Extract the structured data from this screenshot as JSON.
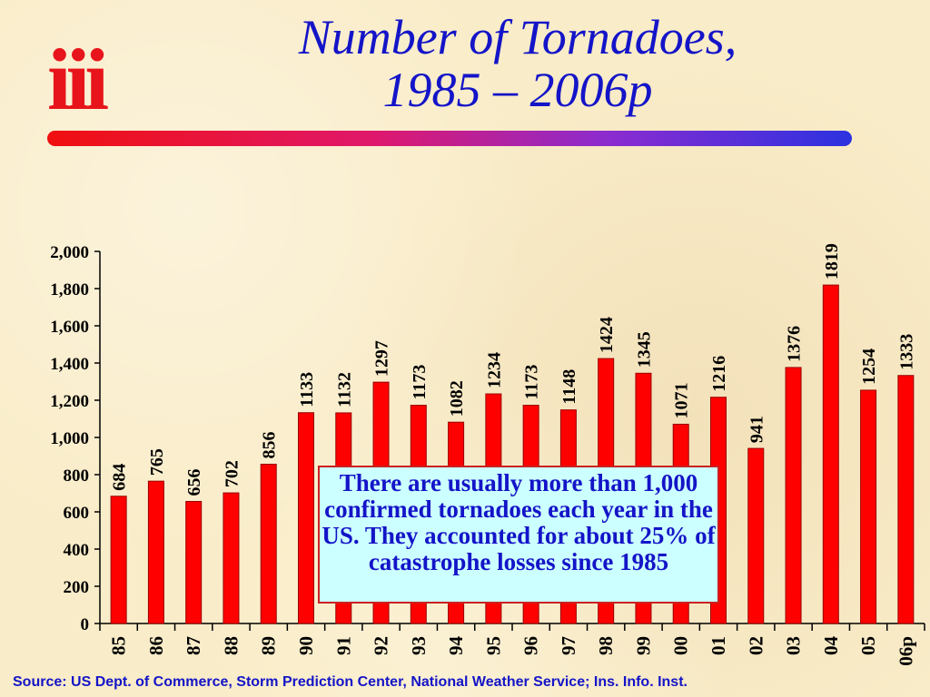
{
  "logo": {
    "text": "iii"
  },
  "header": {
    "title_line1": "Number of Tornadoes,",
    "title_line2": "1985 – 2006p"
  },
  "callout": {
    "text": "There are usually more than 1,000 confirmed tornadoes each year in the US.  They accounted for about 25% of catastrophe losses since 1985"
  },
  "source": "Source: US Dept. of Commerce, Storm Prediction Center, National Weather Service; Ins. Info. Inst.",
  "colors": {
    "bar": "#ff0000",
    "bar_stroke": "#990000",
    "title": "#1414c8",
    "text": "#000000"
  },
  "chart_data": {
    "type": "bar",
    "title": "Number of Tornadoes, 1985 – 2006p",
    "categories": [
      "85",
      "86",
      "87",
      "88",
      "89",
      "90",
      "91",
      "92",
      "93",
      "94",
      "95",
      "96",
      "97",
      "98",
      "99",
      "00",
      "01",
      "02",
      "03",
      "04",
      "05",
      "06p"
    ],
    "values": [
      684,
      765,
      656,
      702,
      856,
      1133,
      1132,
      1297,
      1173,
      1082,
      1234,
      1173,
      1148,
      1424,
      1345,
      1071,
      1216,
      941,
      1376,
      1819,
      1254,
      1333
    ],
    "data_labels": [
      "684",
      "765",
      "656",
      "702",
      "856",
      "1133",
      "1132",
      "1297",
      "1173",
      "1082",
      "1234",
      "1173",
      "1148",
      "1424",
      "1345",
      "1071",
      "1216",
      "941",
      "1376",
      "1819",
      "1254",
      "1333"
    ],
    "ylim": [
      0,
      2000
    ],
    "yticks": [
      0,
      200,
      400,
      600,
      800,
      1000,
      1200,
      1400,
      1600,
      1800,
      2000
    ],
    "ytick_labels": [
      "0",
      "200",
      "400",
      "600",
      "800",
      "1,000",
      "1,200",
      "1,400",
      "1,600",
      "1,800",
      "2,000"
    ],
    "xlabel": "",
    "ylabel": "",
    "grid": false,
    "legend": "none"
  }
}
